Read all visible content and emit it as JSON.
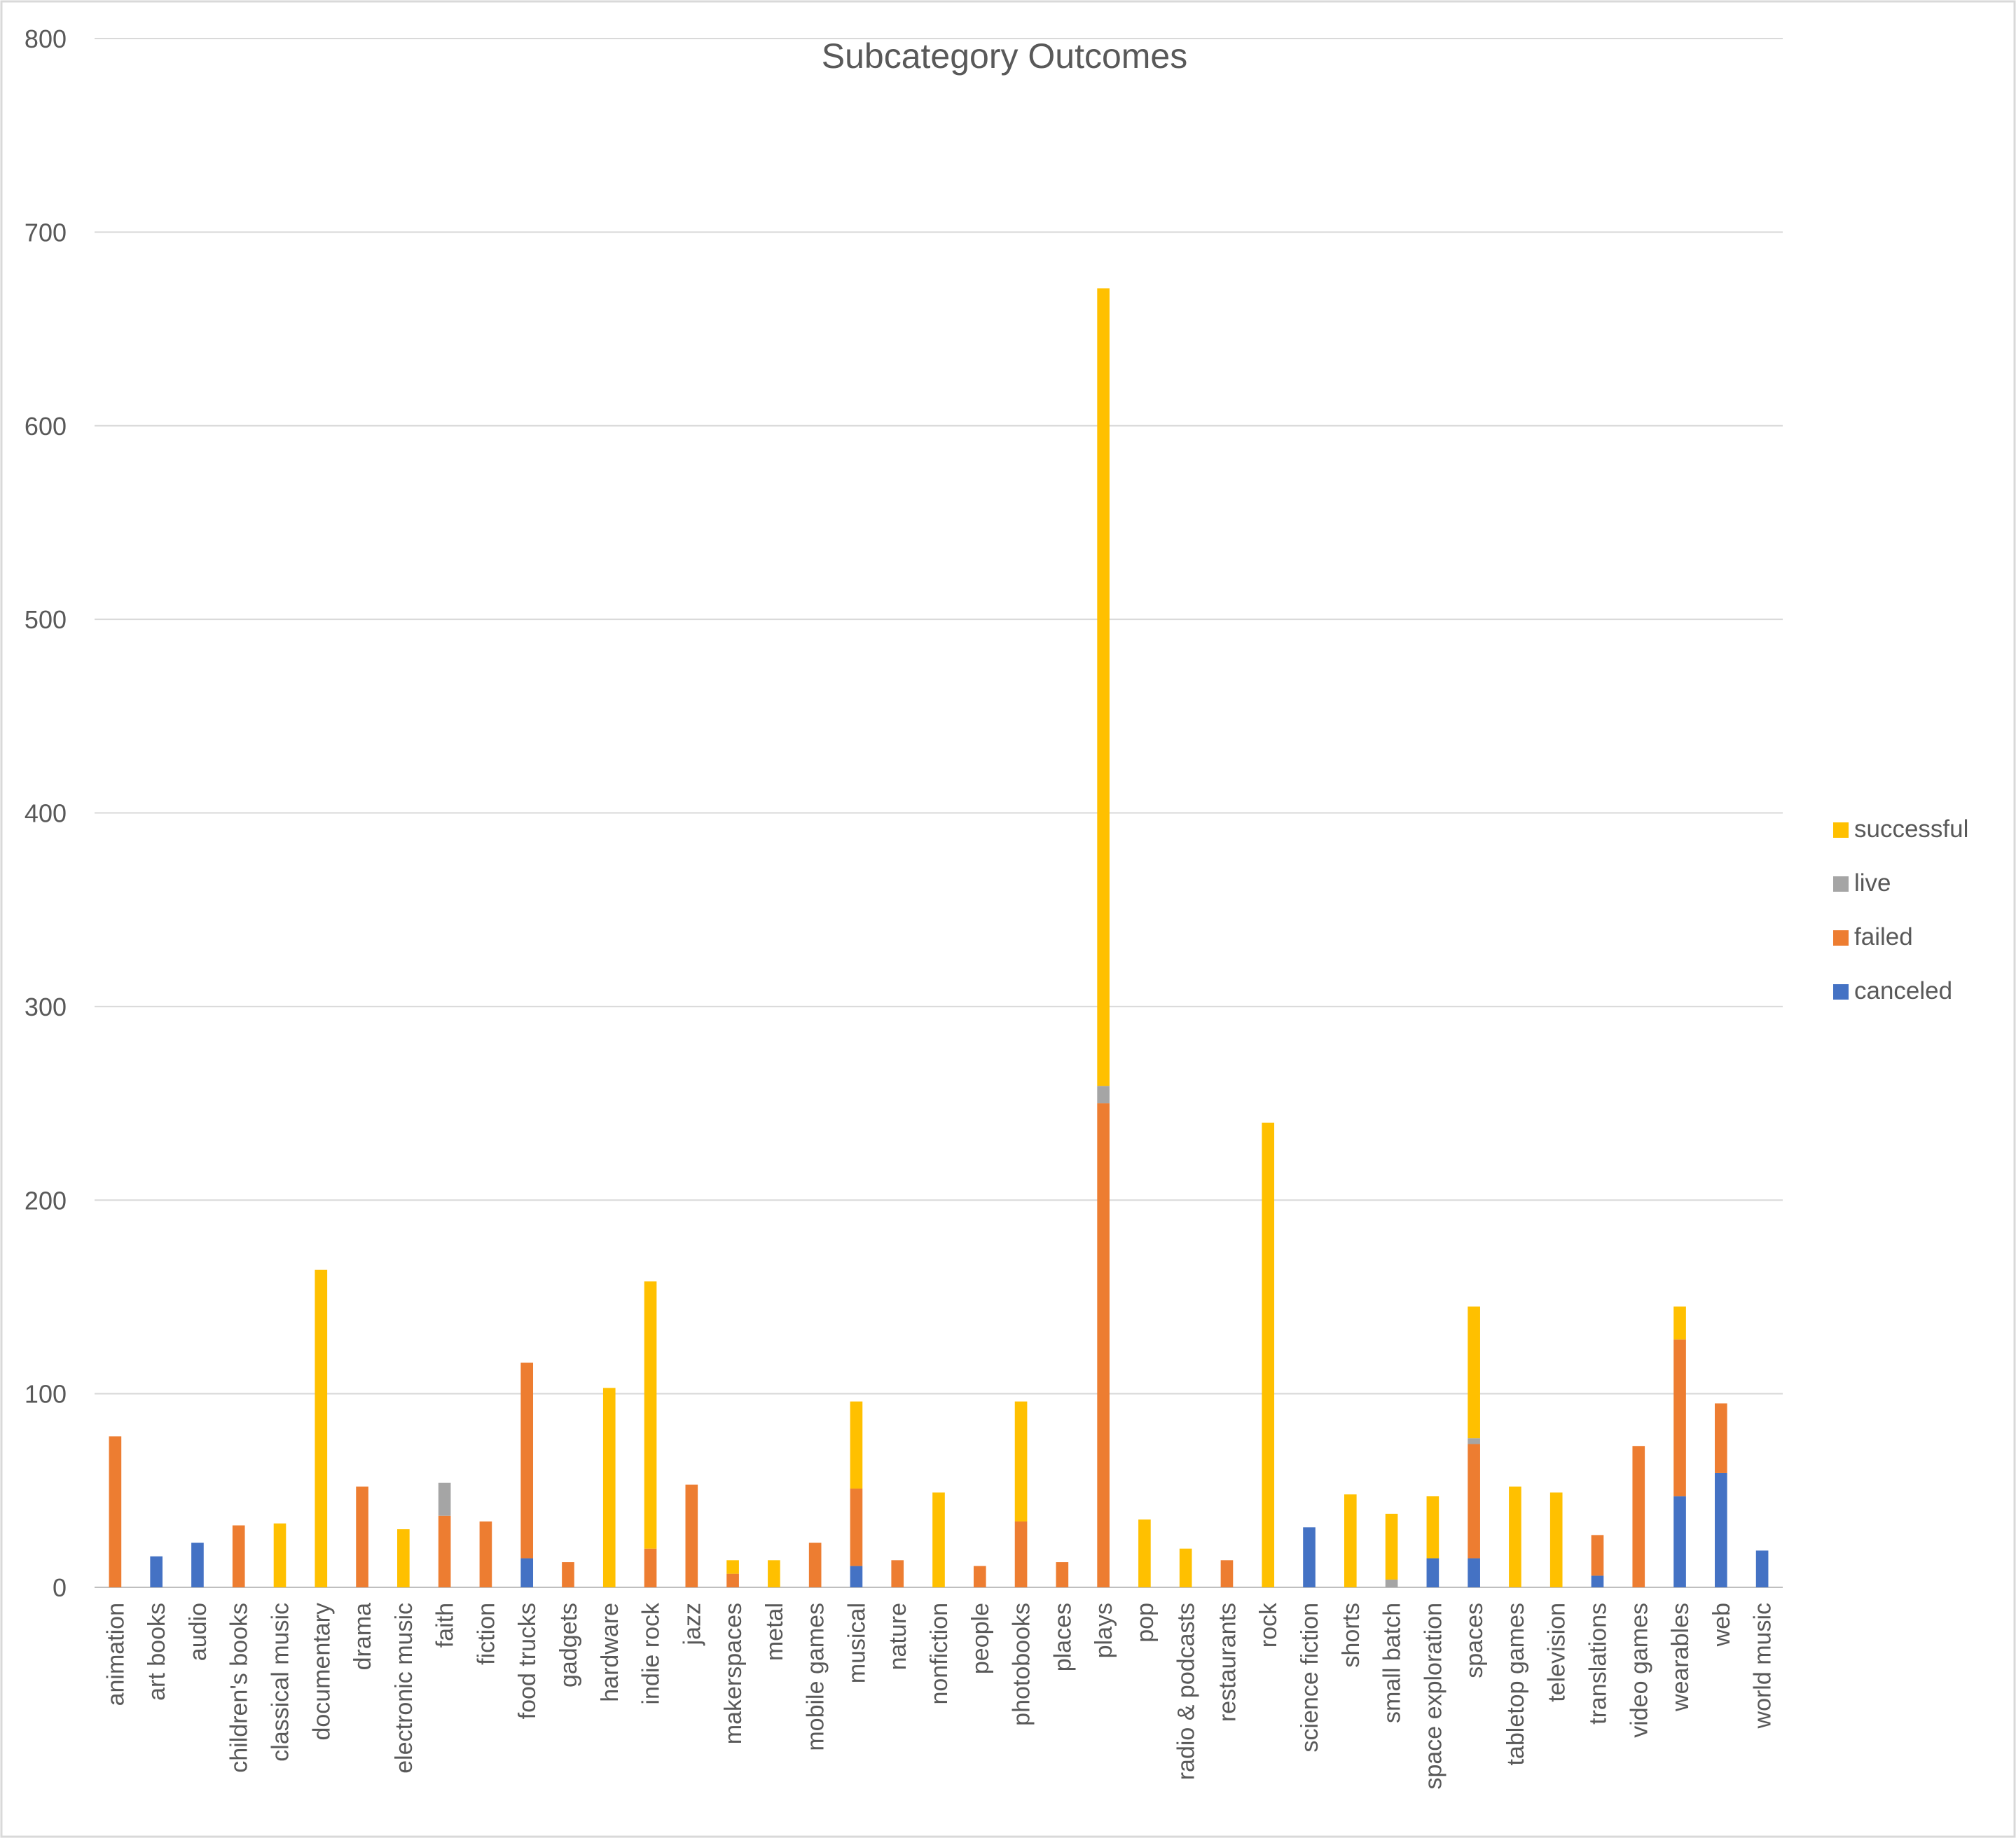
{
  "chart_data": {
    "type": "bar",
    "stacked": true,
    "title": "Subcategory Outcomes",
    "xlabel": "",
    "ylabel": "",
    "ylim": [
      0,
      800
    ],
    "yticks": [
      0,
      100,
      200,
      300,
      400,
      500,
      600,
      700,
      800
    ],
    "grid": true,
    "legend_position": "right",
    "categories": [
      "animation",
      "art books",
      "audio",
      "children's books",
      "classical music",
      "documentary",
      "drama",
      "electronic music",
      "faith",
      "fiction",
      "food trucks",
      "gadgets",
      "hardware",
      "indie rock",
      "jazz",
      "makerspaces",
      "metal",
      "mobile games",
      "musical",
      "nature",
      "nonfiction",
      "people",
      "photobooks",
      "places",
      "plays",
      "pop",
      "radio & podcasts",
      "restaurants",
      "rock",
      "science fiction",
      "shorts",
      "small batch",
      "space exploration",
      "spaces",
      "tabletop games",
      "television",
      "translations",
      "video games",
      "wearables",
      "web",
      "world music"
    ],
    "series": [
      {
        "name": "canceled",
        "color": "#4472C4",
        "values": [
          0,
          16,
          23,
          0,
          0,
          0,
          0,
          0,
          0,
          0,
          15,
          0,
          0,
          0,
          0,
          0,
          0,
          0,
          11,
          0,
          0,
          0,
          0,
          0,
          0,
          0,
          0,
          0,
          0,
          31,
          0,
          0,
          15,
          15,
          0,
          0,
          6,
          0,
          47,
          59,
          19
        ]
      },
      {
        "name": "failed",
        "color": "#ED7D31",
        "values": [
          78,
          0,
          0,
          32,
          0,
          0,
          52,
          0,
          37,
          34,
          101,
          13,
          0,
          20,
          53,
          7,
          0,
          23,
          40,
          14,
          0,
          11,
          34,
          13,
          250,
          0,
          0,
          14,
          0,
          0,
          0,
          0,
          0,
          59,
          0,
          0,
          21,
          73,
          81,
          36,
          0
        ]
      },
      {
        "name": "live",
        "color": "#A5A5A5",
        "values": [
          0,
          0,
          0,
          0,
          0,
          0,
          0,
          0,
          17,
          0,
          0,
          0,
          0,
          0,
          0,
          0,
          0,
          0,
          0,
          0,
          0,
          0,
          0,
          0,
          9,
          0,
          0,
          0,
          0,
          0,
          0,
          4,
          0,
          3,
          0,
          0,
          0,
          0,
          0,
          0,
          0
        ]
      },
      {
        "name": "successful",
        "color": "#FFC000",
        "values": [
          0,
          0,
          0,
          0,
          33,
          164,
          0,
          30,
          0,
          0,
          0,
          0,
          103,
          138,
          0,
          7,
          14,
          0,
          45,
          0,
          49,
          0,
          62,
          0,
          412,
          35,
          20,
          0,
          240,
          0,
          48,
          34,
          32,
          68,
          52,
          49,
          0,
          0,
          17,
          0,
          0
        ]
      }
    ],
    "legend_order": [
      "successful",
      "live",
      "failed",
      "canceled"
    ]
  }
}
